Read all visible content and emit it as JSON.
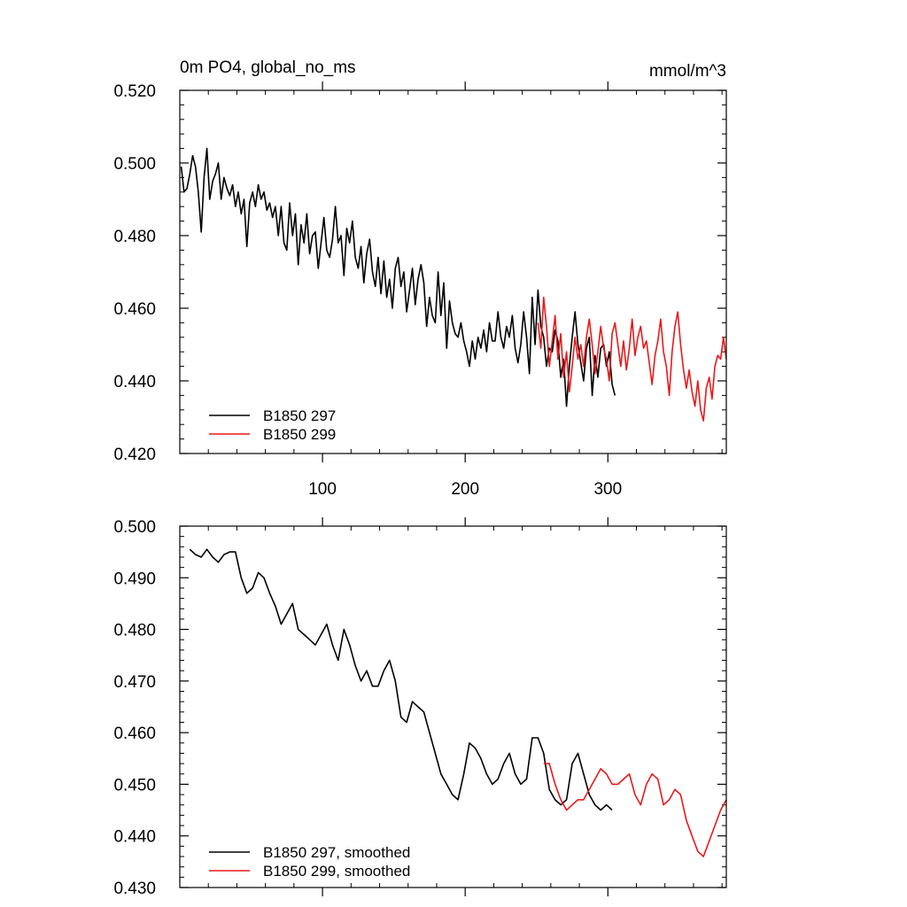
{
  "chart_data": [
    {
      "type": "line",
      "title": "0m PO4, global_no_ms",
      "units": "mmol/m^3",
      "xlim": [
        0,
        383
      ],
      "ylim": [
        0.42,
        0.52
      ],
      "xticks": [
        100,
        200,
        300
      ],
      "xtick_labels": [
        "100",
        "200",
        "300"
      ],
      "yticks": [
        0.42,
        0.44,
        0.46,
        0.48,
        0.5,
        0.52
      ],
      "ytick_labels": [
        "0.420",
        "0.440",
        "0.460",
        "0.480",
        "0.500",
        "0.520"
      ],
      "legend_position": "bottom-left",
      "series": [
        {
          "name": "B1850 297",
          "color": "#000000",
          "x": [
            1,
            3,
            5,
            7,
            9,
            11,
            13,
            15,
            17,
            19,
            21,
            23,
            25,
            27,
            29,
            31,
            33,
            35,
            37,
            39,
            41,
            43,
            45,
            47,
            49,
            51,
            53,
            55,
            57,
            59,
            61,
            63,
            65,
            67,
            69,
            71,
            73,
            75,
            77,
            79,
            81,
            83,
            85,
            87,
            89,
            91,
            93,
            95,
            97,
            99,
            101,
            103,
            105,
            107,
            109,
            111,
            113,
            115,
            117,
            119,
            121,
            123,
            125,
            127,
            129,
            131,
            133,
            135,
            137,
            139,
            141,
            143,
            145,
            147,
            149,
            151,
            153,
            155,
            157,
            159,
            161,
            163,
            165,
            167,
            169,
            171,
            173,
            175,
            177,
            179,
            181,
            183,
            185,
            187,
            189,
            191,
            193,
            195,
            197,
            199,
            201,
            203,
            205,
            207,
            209,
            211,
            213,
            215,
            217,
            219,
            221,
            223,
            225,
            227,
            229,
            231,
            233,
            235,
            237,
            239,
            241,
            243,
            245,
            247,
            249,
            251,
            253,
            255,
            257,
            259,
            261,
            263,
            265,
            267,
            269,
            271,
            273,
            275,
            277,
            279,
            281,
            283,
            285,
            287,
            289,
            291,
            293,
            295,
            297,
            299,
            301,
            303,
            305
          ],
          "values": [
            0.499,
            0.492,
            0.493,
            0.497,
            0.502,
            0.499,
            0.492,
            0.481,
            0.496,
            0.504,
            0.49,
            0.495,
            0.497,
            0.5,
            0.49,
            0.496,
            0.493,
            0.491,
            0.494,
            0.488,
            0.492,
            0.486,
            0.49,
            0.477,
            0.489,
            0.492,
            0.488,
            0.494,
            0.49,
            0.492,
            0.487,
            0.489,
            0.485,
            0.488,
            0.48,
            0.488,
            0.478,
            0.476,
            0.489,
            0.48,
            0.486,
            0.472,
            0.483,
            0.478,
            0.486,
            0.475,
            0.48,
            0.481,
            0.471,
            0.478,
            0.485,
            0.476,
            0.474,
            0.479,
            0.488,
            0.478,
            0.48,
            0.469,
            0.482,
            0.478,
            0.484,
            0.474,
            0.471,
            0.477,
            0.467,
            0.475,
            0.479,
            0.47,
            0.466,
            0.474,
            0.464,
            0.473,
            0.463,
            0.468,
            0.46,
            0.471,
            0.474,
            0.466,
            0.47,
            0.459,
            0.465,
            0.471,
            0.461,
            0.468,
            0.472,
            0.467,
            0.455,
            0.463,
            0.458,
            0.456,
            0.47,
            0.458,
            0.467,
            0.449,
            0.462,
            0.456,
            0.453,
            0.452,
            0.456,
            0.451,
            0.448,
            0.444,
            0.451,
            0.446,
            0.452,
            0.449,
            0.454,
            0.448,
            0.456,
            0.451,
            0.451,
            0.459,
            0.452,
            0.449,
            0.455,
            0.452,
            0.458,
            0.449,
            0.445,
            0.45,
            0.459,
            0.452,
            0.442,
            0.463,
            0.45,
            0.465,
            0.455,
            0.452,
            0.444,
            0.449,
            0.448,
            0.454,
            0.451,
            0.441,
            0.446,
            0.433,
            0.444,
            0.452,
            0.459,
            0.45,
            0.445,
            0.44,
            0.449,
            0.452,
            0.436,
            0.447,
            0.441,
            0.449,
            0.45,
            0.444,
            0.448,
            0.439,
            0.436
          ]
        },
        {
          "name": "B1850 299",
          "color": "#e8191a",
          "x": [
            251,
            253,
            255,
            257,
            259,
            261,
            263,
            265,
            267,
            269,
            271,
            273,
            275,
            277,
            279,
            281,
            283,
            285,
            287,
            289,
            291,
            293,
            295,
            297,
            299,
            301,
            303,
            305,
            307,
            309,
            311,
            313,
            315,
            317,
            319,
            321,
            323,
            325,
            327,
            329,
            331,
            333,
            335,
            337,
            339,
            341,
            343,
            345,
            347,
            349,
            351,
            353,
            355,
            357,
            359,
            361,
            363,
            365,
            367,
            369,
            371,
            373,
            375,
            377,
            379,
            381,
            383
          ],
          "values": [
            0.456,
            0.449,
            0.463,
            0.455,
            0.444,
            0.451,
            0.458,
            0.446,
            0.453,
            0.441,
            0.448,
            0.437,
            0.444,
            0.452,
            0.446,
            0.45,
            0.444,
            0.452,
            0.457,
            0.45,
            0.442,
            0.448,
            0.455,
            0.449,
            0.446,
            0.44,
            0.453,
            0.456,
            0.45,
            0.444,
            0.451,
            0.443,
            0.449,
            0.457,
            0.447,
            0.452,
            0.455,
            0.449,
            0.451,
            0.445,
            0.439,
            0.447,
            0.451,
            0.457,
            0.448,
            0.444,
            0.436,
            0.448,
            0.455,
            0.459,
            0.45,
            0.443,
            0.438,
            0.443,
            0.437,
            0.433,
            0.44,
            0.432,
            0.429,
            0.438,
            0.441,
            0.435,
            0.444,
            0.447,
            0.446,
            0.452,
            0.446
          ]
        }
      ]
    },
    {
      "type": "line",
      "title": "",
      "xlim": [
        0,
        383
      ],
      "ylim": [
        0.43,
        0.5
      ],
      "xticks": [
        100,
        200,
        300
      ],
      "xtick_labels": [],
      "yticks": [
        0.43,
        0.44,
        0.45,
        0.46,
        0.47,
        0.48,
        0.49,
        0.5
      ],
      "ytick_labels": [
        "0.430",
        "0.440",
        "0.450",
        "0.460",
        "0.470",
        "0.480",
        "0.490",
        "0.500"
      ],
      "legend_position": "bottom-left",
      "series": [
        {
          "name": "B1850 297, smoothed",
          "color": "#000000",
          "x": [
            7,
            11,
            15,
            19,
            23,
            27,
            31,
            35,
            39,
            43,
            47,
            51,
            55,
            59,
            63,
            67,
            71,
            75,
            79,
            83,
            87,
            91,
            95,
            99,
            103,
            107,
            111,
            115,
            119,
            123,
            127,
            131,
            135,
            139,
            143,
            147,
            151,
            155,
            159,
            163,
            167,
            171,
            175,
            179,
            183,
            187,
            191,
            195,
            199,
            203,
            207,
            211,
            215,
            219,
            223,
            227,
            231,
            235,
            239,
            243,
            247,
            251,
            255,
            259,
            263,
            267,
            271,
            275,
            279,
            283,
            287,
            291,
            295,
            299,
            303
          ],
          "values": [
            0.4955,
            0.4945,
            0.494,
            0.4955,
            0.494,
            0.493,
            0.4945,
            0.495,
            0.495,
            0.49,
            0.487,
            0.488,
            0.491,
            0.49,
            0.487,
            0.4845,
            0.481,
            0.483,
            0.485,
            0.48,
            0.479,
            0.478,
            0.477,
            0.479,
            0.481,
            0.477,
            0.474,
            0.48,
            0.477,
            0.473,
            0.47,
            0.472,
            0.469,
            0.469,
            0.472,
            0.474,
            0.47,
            0.463,
            0.462,
            0.466,
            0.465,
            0.464,
            0.46,
            0.456,
            0.452,
            0.45,
            0.448,
            0.447,
            0.452,
            0.458,
            0.457,
            0.455,
            0.452,
            0.45,
            0.451,
            0.454,
            0.456,
            0.452,
            0.45,
            0.451,
            0.459,
            0.459,
            0.456,
            0.449,
            0.447,
            0.446,
            0.447,
            0.454,
            0.456,
            0.452,
            0.448,
            0.446,
            0.445,
            0.446,
            0.445
          ]
        },
        {
          "name": "B1850 299, smoothed",
          "color": "#e8191a",
          "x": [
            255,
            259,
            263,
            267,
            271,
            275,
            279,
            283,
            287,
            291,
            295,
            299,
            303,
            307,
            311,
            315,
            319,
            323,
            327,
            331,
            335,
            339,
            343,
            347,
            351,
            355,
            359,
            363,
            367,
            371,
            375,
            379,
            383
          ],
          "values": [
            0.454,
            0.454,
            0.45,
            0.447,
            0.445,
            0.446,
            0.447,
            0.447,
            0.449,
            0.451,
            0.453,
            0.452,
            0.45,
            0.45,
            0.451,
            0.452,
            0.448,
            0.446,
            0.45,
            0.452,
            0.451,
            0.446,
            0.447,
            0.449,
            0.448,
            0.443,
            0.44,
            0.437,
            0.436,
            0.439,
            0.442,
            0.445,
            0.447
          ]
        }
      ]
    }
  ]
}
